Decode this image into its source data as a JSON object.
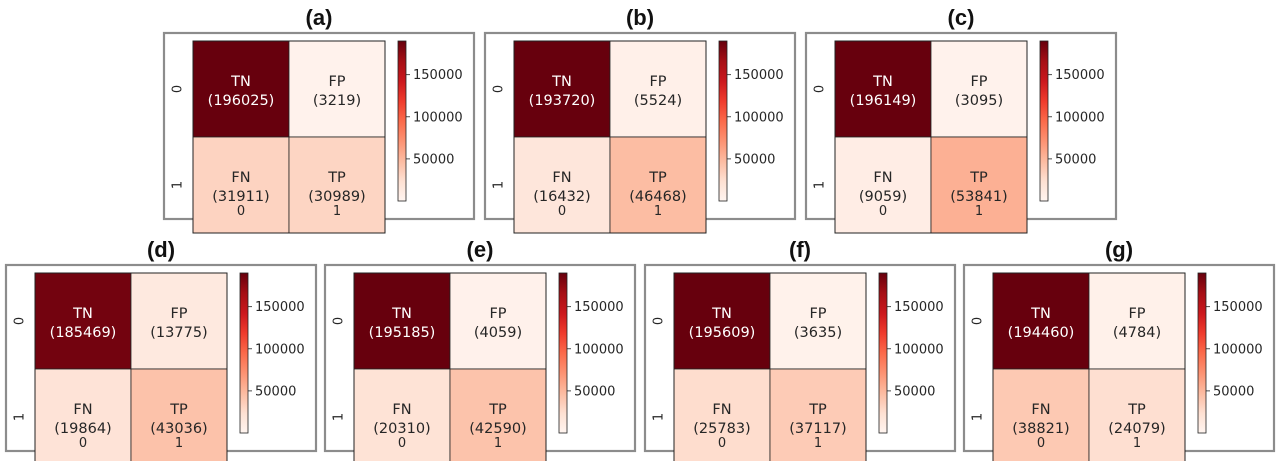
{
  "chart_data": [
    {
      "type": "heatmap",
      "title": "(a)",
      "cell_labels": [
        [
          "TN",
          "FP"
        ],
        [
          "FN",
          "TP"
        ]
      ],
      "values": [
        [
          196025,
          3219
        ],
        [
          31911,
          30989
        ]
      ],
      "x_tick_labels": [
        "0",
        "1"
      ],
      "y_tick_labels": [
        "0",
        "1"
      ],
      "colorbar_ticks": [
        50000,
        100000,
        150000
      ],
      "colorbar_tick_labels": [
        "50000",
        "100000",
        "150000"
      ]
    },
    {
      "type": "heatmap",
      "title": "(b)",
      "cell_labels": [
        [
          "TN",
          "FP"
        ],
        [
          "FN",
          "TP"
        ]
      ],
      "values": [
        [
          193720,
          5524
        ],
        [
          16432,
          46468
        ]
      ],
      "x_tick_labels": [
        "0",
        "1"
      ],
      "y_tick_labels": [
        "0",
        "1"
      ],
      "colorbar_ticks": [
        50000,
        100000,
        150000
      ],
      "colorbar_tick_labels": [
        "50000",
        "100000",
        "150000"
      ]
    },
    {
      "type": "heatmap",
      "title": "(c)",
      "cell_labels": [
        [
          "TN",
          "FP"
        ],
        [
          "FN",
          "TP"
        ]
      ],
      "values": [
        [
          196149,
          3095
        ],
        [
          9059,
          53841
        ]
      ],
      "x_tick_labels": [
        "0",
        "1"
      ],
      "y_tick_labels": [
        "0",
        "1"
      ],
      "colorbar_ticks": [
        50000,
        100000,
        150000
      ],
      "colorbar_tick_labels": [
        "50000",
        "100000",
        "150000"
      ]
    },
    {
      "type": "heatmap",
      "title": "(d)",
      "cell_labels": [
        [
          "TN",
          "FP"
        ],
        [
          "FN",
          "TP"
        ]
      ],
      "values": [
        [
          185469,
          13775
        ],
        [
          19864,
          43036
        ]
      ],
      "x_tick_labels": [
        "0",
        "1"
      ],
      "y_tick_labels": [
        "0",
        "1"
      ],
      "colorbar_ticks": [
        50000,
        100000,
        150000
      ],
      "colorbar_tick_labels": [
        "50000",
        "100000",
        "150000"
      ]
    },
    {
      "type": "heatmap",
      "title": "(e)",
      "cell_labels": [
        [
          "TN",
          "FP"
        ],
        [
          "FN",
          "TP"
        ]
      ],
      "values": [
        [
          195185,
          4059
        ],
        [
          20310,
          42590
        ]
      ],
      "x_tick_labels": [
        "0",
        "1"
      ],
      "y_tick_labels": [
        "0",
        "1"
      ],
      "colorbar_ticks": [
        50000,
        100000,
        150000
      ],
      "colorbar_tick_labels": [
        "50000",
        "100000",
        "150000"
      ]
    },
    {
      "type": "heatmap",
      "title": "(f)",
      "cell_labels": [
        [
          "TN",
          "FP"
        ],
        [
          "FN",
          "TP"
        ]
      ],
      "values": [
        [
          195609,
          3635
        ],
        [
          25783,
          37117
        ]
      ],
      "x_tick_labels": [
        "0",
        "1"
      ],
      "y_tick_labels": [
        "0",
        "1"
      ],
      "colorbar_ticks": [
        50000,
        100000,
        150000
      ],
      "colorbar_tick_labels": [
        "50000",
        "100000",
        "150000"
      ]
    },
    {
      "type": "heatmap",
      "title": "(g)",
      "cell_labels": [
        [
          "TN",
          "FP"
        ],
        [
          "FN",
          "TP"
        ]
      ],
      "values": [
        [
          194460,
          4784
        ],
        [
          38821,
          24079
        ]
      ],
      "x_tick_labels": [
        "0",
        "1"
      ],
      "y_tick_labels": [
        "0",
        "1"
      ],
      "colorbar_ticks": [
        50000,
        100000,
        150000
      ],
      "colorbar_tick_labels": [
        "50000",
        "100000",
        "150000"
      ]
    }
  ],
  "colormap": "Reds",
  "colormap_stops": [
    "#fff5f0",
    "#fee0d2",
    "#fcbba1",
    "#fc9272",
    "#fb6a4a",
    "#ef3b2c",
    "#cb181d",
    "#a50f15",
    "#67000d"
  ]
}
